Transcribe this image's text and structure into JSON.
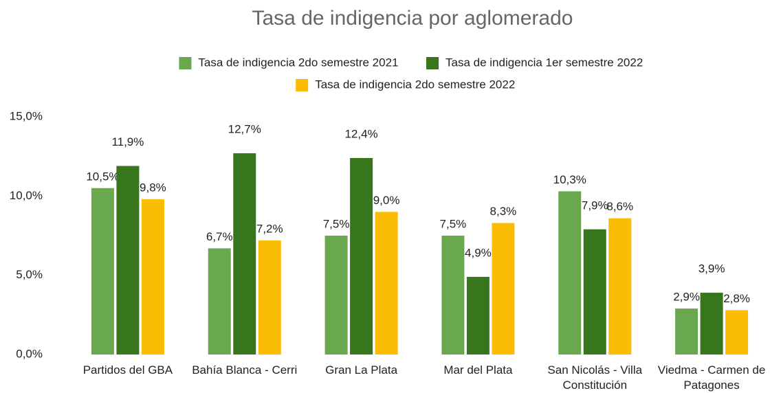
{
  "chart_data": {
    "type": "bar",
    "title": "Tasa de indigencia por aglomerado",
    "categories": [
      "Partidos del GBA",
      "Bahía Blanca - Cerri",
      "Gran La Plata",
      "Mar del Plata",
      "San Nicolás - Villa Constitución",
      "Viedma - Carmen de Patagones"
    ],
    "series": [
      {
        "name": "Tasa de indigencia 2do semestre 2021",
        "color": "#6aa84f",
        "values": [
          10.5,
          6.7,
          7.5,
          7.5,
          10.3,
          2.9
        ],
        "value_labels": [
          "10,5%",
          "6,7%",
          "7,5%",
          "7,5%",
          "10,3%",
          "2,9%"
        ]
      },
      {
        "name": "Tasa de indigencia 1er semestre 2022",
        "color": "#38761d",
        "values": [
          11.9,
          12.7,
          12.4,
          4.9,
          7.9,
          3.9
        ],
        "value_labels": [
          "11,9%",
          "12,7%",
          "12,4%",
          "4,9%",
          "7,9%",
          "3,9%"
        ]
      },
      {
        "name": "Tasa de indigencia 2do semestre 2022",
        "color": "#fbbc04",
        "values": [
          9.8,
          7.2,
          9.0,
          8.3,
          8.6,
          2.8
        ],
        "value_labels": [
          "9,8%",
          "7,2%",
          "9,0%",
          "8,3%",
          "8,6%",
          "2,8%"
        ]
      }
    ],
    "ylim": [
      0,
      15
    ],
    "yticks": [
      {
        "value": 0,
        "label": "0,0%"
      },
      {
        "value": 5,
        "label": "5,0%"
      },
      {
        "value": 10,
        "label": "10,0%"
      },
      {
        "value": 15,
        "label": "15,0%"
      }
    ],
    "grid": false,
    "legend": "top"
  }
}
